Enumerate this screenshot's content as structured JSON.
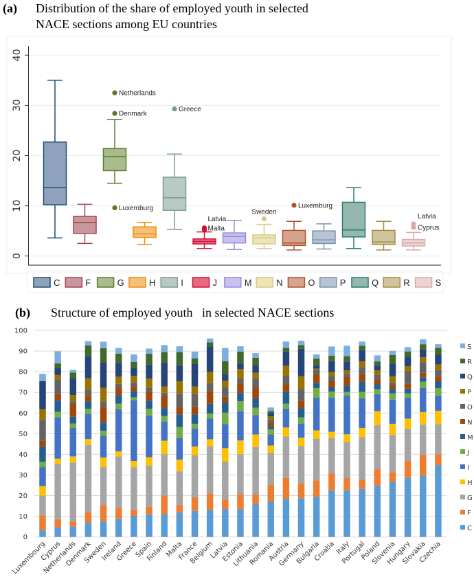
{
  "chart_data": [
    {
      "type": "box",
      "panel": "(a)",
      "title_line1": "Distribution of the share of employed youth in selected",
      "title_line2": "NACE sections among EU countries",
      "ylim": [
        0,
        42
      ],
      "yticks": [
        "0",
        "10",
        "20",
        "30",
        "40"
      ],
      "ytick_values": [
        0,
        10,
        20,
        30,
        40
      ],
      "grid": true,
      "legend_placement": "bottom",
      "boxes": [
        {
          "name": "C",
          "low": 3.6,
          "q1": 10.2,
          "median": 13.6,
          "q3": 22.7,
          "high": 35.0,
          "edge": "#1f4e79",
          "fill": "#8ea3bb",
          "outliers": []
        },
        {
          "name": "F",
          "low": 2.5,
          "q1": 4.5,
          "median": 6.7,
          "q3": 7.9,
          "high": 10.3,
          "edge": "#a0464e",
          "fill": "#c9979b",
          "outliers": []
        },
        {
          "name": "G",
          "low": 14.5,
          "q1": 17.0,
          "median": 19.8,
          "q3": 21.4,
          "high": 27.2,
          "edge": "#5a7a2a",
          "fill": "#aabb8e",
          "outliers": [
            {
              "label": "Netherlands",
              "value": 32.5
            },
            {
              "label": "Denmark",
              "value": 28.4
            },
            {
              "label": "Luxemburg",
              "value": 9.6
            }
          ]
        },
        {
          "name": "H",
          "low": 2.3,
          "q1": 3.7,
          "median": 4.4,
          "q3": 5.8,
          "high": 6.7,
          "edge": "#f08c00",
          "fill": "#f4c07e",
          "outliers": []
        },
        {
          "name": "I",
          "low": 5.3,
          "q1": 9.1,
          "median": 11.6,
          "q3": 15.7,
          "high": 20.3,
          "edge": "#7a9a92",
          "fill": "#b9c9c3",
          "outliers": [
            {
              "label": "Greece",
              "value": 29.3
            }
          ]
        },
        {
          "name": "J",
          "low": 1.5,
          "q1": 2.4,
          "median": 2.9,
          "q3": 3.4,
          "high": 4.8,
          "edge": "#d0103a",
          "fill": "#e56a80",
          "outliers": [
            {
              "label": "Latvia",
              "value": 5.6
            },
            {
              "label": "Malta",
              "value": 5.2
            }
          ]
        },
        {
          "name": "M",
          "low": 1.3,
          "q1": 2.6,
          "median": 3.9,
          "q3": 4.6,
          "high": 7.1,
          "edge": "#9a8ae0",
          "fill": "#c9c1ee",
          "outliers": []
        },
        {
          "name": "N",
          "low": 1.5,
          "q1": 2.4,
          "median": 3.6,
          "q3": 4.2,
          "high": 6.3,
          "edge": "#d6c982",
          "fill": "#ece5b8",
          "outliers": [
            {
              "label": "Sweden",
              "value": 7.4
            }
          ]
        },
        {
          "name": "O",
          "low": 1.2,
          "q1": 2.1,
          "median": 2.6,
          "q3": 5.1,
          "high": 6.9,
          "edge": "#b0502a",
          "fill": "#d4a48e",
          "outliers": [
            {
              "label": "Luxemburg",
              "value": 10.1
            }
          ]
        },
        {
          "name": "P",
          "low": 1.4,
          "q1": 2.5,
          "median": 3.2,
          "q3": 5.0,
          "high": 6.4,
          "edge": "#7a90b0",
          "fill": "#b8c4d4",
          "outliers": []
        },
        {
          "name": "Q",
          "low": 1.5,
          "q1": 3.8,
          "median": 5.2,
          "q3": 10.7,
          "high": 13.6,
          "edge": "#2a7a6a",
          "fill": "#94b8b0",
          "outliers": []
        },
        {
          "name": "R",
          "low": 1.2,
          "q1": 2.3,
          "median": 2.8,
          "q3": 5.1,
          "high": 6.9,
          "edge": "#a08a40",
          "fill": "#d0c49c",
          "outliers": []
        },
        {
          "name": "S",
          "low": 1.2,
          "q1": 2.0,
          "median": 2.6,
          "q3": 3.3,
          "high": 4.7,
          "edge": "#d8aaaa",
          "fill": "#ecd4d4",
          "outliers": [
            {
              "label": "Latvia",
              "value": 6.4
            },
            {
              "label": "Cyprus",
              "value": 5.7
            }
          ]
        }
      ]
    },
    {
      "type": "stacked-bar",
      "panel": "(b)",
      "title": "Structure of employed youth   in selected NACE sections",
      "ylim": [
        0,
        100
      ],
      "yticks": [
        "0",
        "10",
        "20",
        "30",
        "40",
        "50",
        "60",
        "70",
        "80",
        "90",
        "100"
      ],
      "ytick_values": [
        0,
        10,
        20,
        30,
        40,
        50,
        60,
        70,
        80,
        90,
        100
      ],
      "grid": true,
      "legend_placement": "right",
      "categories": [
        "Luxembourg",
        "Cyprus",
        "Netherlands",
        "Denmark",
        "Sweden",
        "Ireland",
        "Greece",
        "Spain",
        "Finland",
        "Malta",
        "France",
        "Belgium",
        "Latvia",
        "Estonia",
        "Lithuania",
        "Romania",
        "Austria",
        "Germany",
        "Bulgaria",
        "Croatia",
        "Italy",
        "Portugal",
        "Poland",
        "Slovenia",
        "Hungary",
        "Slovakia",
        "Czechia"
      ],
      "series": [
        {
          "name": "C",
          "color": "#5b9bd5",
          "values": [
            3.3,
            4.7,
            5.0,
            6.9,
            7.6,
            8.8,
            10.2,
            11.0,
            11.2,
            11.9,
            12.6,
            13.1,
            13.5,
            13.5,
            15.9,
            17.2,
            18.5,
            18.8,
            19.5,
            22.4,
            22.6,
            23.3,
            24.9,
            26.6,
            28.5,
            29.7,
            34.8
          ]
        },
        {
          "name": "F",
          "color": "#ed7d31",
          "values": [
            7.2,
            3.8,
            2.5,
            5.2,
            7.8,
            5.3,
            3.1,
            3.6,
            8.8,
            3.6,
            6.7,
            7.9,
            4.6,
            7.3,
            4.6,
            8.1,
            10.1,
            7.1,
            7.9,
            8.4,
            5.9,
            4.4,
            7.9,
            4.8,
            8.3,
            10.2,
            5.3
          ]
        },
        {
          "name": "G",
          "color": "#a5a5a5",
          "values": [
            9.5,
            27.0,
            28.5,
            32.5,
            18.4,
            24.9,
            20.5,
            20.0,
            20.1,
            16.3,
            20.3,
            22.8,
            18.5,
            19.3,
            23.1,
            15.5,
            20.0,
            18.1,
            20.2,
            17.1,
            17.3,
            20.7,
            21.3,
            18.0,
            15.7,
            14.5,
            14.6
          ]
        },
        {
          "name": "H",
          "color": "#ffc000",
          "values": [
            4.6,
            2.4,
            3.0,
            2.8,
            4.7,
            2.4,
            3.0,
            4.0,
            6.5,
            5.6,
            4.2,
            3.5,
            6.4,
            6.6,
            6.0,
            3.5,
            4.4,
            4.0,
            4.0,
            3.0,
            3.9,
            4.4,
            6.8,
            5.4,
            4.8,
            6.0,
            6.4
          ]
        },
        {
          "name": "I",
          "color": "#4472c4",
          "values": [
            9.2,
            20.0,
            13.9,
            12.1,
            10.5,
            20.4,
            29.4,
            20.2,
            9.3,
            10.5,
            8.7,
            10.1,
            11.7,
            14.1,
            9.4,
            5.3,
            9.1,
            6.9,
            15.8,
            16.5,
            18.9,
            14.3,
            8.2,
            11.7,
            10.1,
            11.7,
            7.4
          ]
        },
        {
          "name": "J",
          "color": "#70ad47",
          "values": [
            2.6,
            2.7,
            2.0,
            2.6,
            2.4,
            2.7,
            1.4,
            3.3,
            2.6,
            5.3,
            2.3,
            2.4,
            5.5,
            4.9,
            3.6,
            2.5,
            2.4,
            3.0,
            4.7,
            3.0,
            1.6,
            3.1,
            2.4,
            3.0,
            2.1,
            3.1,
            3.5
          ]
        },
        {
          "name": "M",
          "color": "#255e91",
          "values": [
            7.2,
            5.6,
            3.3,
            3.6,
            4.0,
            4.2,
            3.0,
            3.9,
            3.9,
            6.1,
            4.5,
            4.7,
            4.9,
            4.0,
            4.5,
            1.3,
            5.6,
            4.5,
            2.5,
            2.0,
            3.0,
            5.0,
            2.4,
            2.2,
            2.3,
            2.1,
            3.4
          ]
        },
        {
          "name": "N",
          "color": "#9e480e",
          "values": [
            3.1,
            2.9,
            6.2,
            3.0,
            7.6,
            3.9,
            2.0,
            4.2,
            6.3,
            3.6,
            3.9,
            6.1,
            2.7,
            4.8,
            5.3,
            1.9,
            3.8,
            3.6,
            4.3,
            3.0,
            4.2,
            3.5,
            2.3,
            1.7,
            2.3,
            2.2,
            2.4
          ]
        },
        {
          "name": "O",
          "color": "#636363",
          "values": [
            10.0,
            7.1,
            1.3,
            2.6,
            2.6,
            1.5,
            2.2,
            2.1,
            1.1,
            6.6,
            5.9,
            3.9,
            4.8,
            2.2,
            4.4,
            1.6,
            4.0,
            5.7,
            2.1,
            2.5,
            1.6,
            3.6,
            2.2,
            1.4,
            6.1,
            5.1,
            2.9
          ]
        },
        {
          "name": "P",
          "color": "#997300",
          "values": [
            5.1,
            2.2,
            3.0,
            5.5,
            6.6,
            3.5,
            3.2,
            4.3,
            3.0,
            5.9,
            3.7,
            5.4,
            3.1,
            4.6,
            2.7,
            1.5,
            5.0,
            6.1,
            0.5,
            2.0,
            1.6,
            2.7,
            2.2,
            3.1,
            2.4,
            2.4,
            2.8
          ]
        },
        {
          "name": "Q",
          "color": "#264478",
          "values": [
            13.6,
            3.3,
            8.3,
            10.8,
            12.3,
            6.7,
            4.0,
            6.8,
            11.6,
            7.7,
            11.1,
            12.3,
            3.0,
            2.7,
            3.6,
            1.5,
            6.9,
            13.3,
            1.5,
            5.2,
            4.3,
            5.4,
            2.5,
            5.8,
            4.8,
            3.7,
            4.9
          ]
        },
        {
          "name": "R",
          "color": "#43682b",
          "values": [
            0.0,
            2.3,
            2.6,
            5.2,
            6.9,
            4.4,
            2.8,
            5.3,
            5.1,
            6.4,
            2.6,
            2.0,
            6.4,
            5.7,
            3.6,
            1.1,
            1.7,
            1.8,
            3.4,
            2.7,
            2.7,
            2.2,
            1.9,
            4.4,
            2.4,
            2.6,
            3.1
          ]
        },
        {
          "name": "S",
          "color": "#7cafdd",
          "values": [
            3.6,
            5.9,
            1.3,
            2.0,
            3.1,
            2.8,
            3.6,
            2.5,
            3.4,
            2.8,
            3.2,
            1.9,
            6.4,
            2.6,
            2.3,
            1.7,
            3.1,
            2.1,
            2.0,
            4.4,
            5.0,
            2.0,
            2.9,
            2.0,
            2.1,
            2.4,
            1.8
          ]
        }
      ]
    }
  ]
}
